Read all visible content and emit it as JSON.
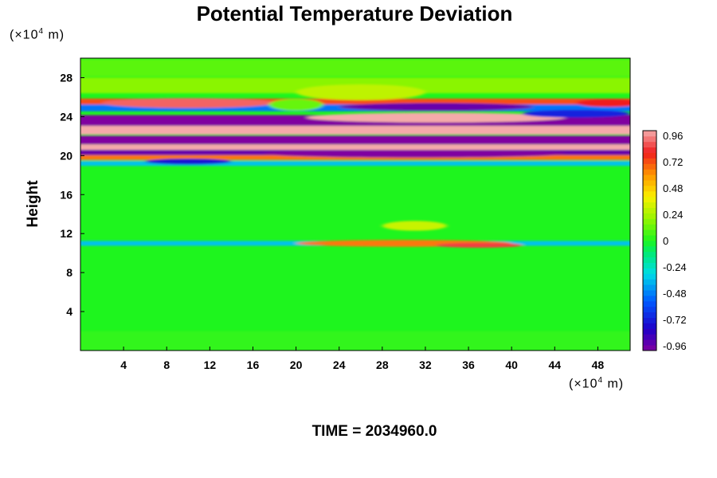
{
  "chart_data": {
    "type": "heatmap",
    "title": "Potential Temperature Deviation",
    "ylabel": "Height",
    "y_unit": {
      "prefix": "(×10",
      "exp": "4",
      "suffix": " m)"
    },
    "x_unit": {
      "prefix": "(×10",
      "exp": "4",
      "suffix": " m)"
    },
    "time_label": "TIME = 2034960.0",
    "xlim": [
      0,
      51
    ],
    "ylim": [
      0,
      30
    ],
    "x_ticks": [
      4,
      8,
      12,
      16,
      20,
      24,
      28,
      32,
      36,
      40,
      44,
      48
    ],
    "y_ticks": [
      4,
      8,
      12,
      16,
      20,
      24,
      28
    ],
    "colorbar": {
      "min": -1.0,
      "max": 1.0,
      "labels": [
        "0.96",
        "0.72",
        "0.48",
        "0.24",
        "0",
        "-0.24",
        "-0.48",
        "-0.72",
        "-0.96"
      ]
    },
    "bands": [
      {
        "y_center": 29.0,
        "half_width": 0.9,
        "value": 0.1
      },
      {
        "y_center": 27.2,
        "half_width": 0.8,
        "value": 0.18
      },
      {
        "y_center": 25.4,
        "half_width": 0.45,
        "value": 0.72
      },
      {
        "y_center": 24.9,
        "half_width": 0.35,
        "value": -0.5
      },
      {
        "y_center": 23.6,
        "half_width": 0.55,
        "value": -1.0
      },
      {
        "y_center": 22.6,
        "half_width": 0.45,
        "value": 1.0
      },
      {
        "y_center": 21.6,
        "half_width": 0.45,
        "value": -1.0
      },
      {
        "y_center": 20.8,
        "half_width": 0.35,
        "value": 1.0
      },
      {
        "y_center": 20.3,
        "half_width": 0.3,
        "value": -0.95
      },
      {
        "y_center": 19.8,
        "half_width": 0.25,
        "value": 0.65
      },
      {
        "y_center": 19.2,
        "half_width": 0.25,
        "value": -0.35
      },
      {
        "y_center": 11.0,
        "half_width": 0.25,
        "value": -0.35
      },
      {
        "y_center": 1.0,
        "half_width": 1.0,
        "value": 0.03
      }
    ],
    "features": [
      {
        "x": 30,
        "y": 11.0,
        "rx": 10,
        "ry": 0.35,
        "value": 0.65
      },
      {
        "x": 37,
        "y": 10.8,
        "rx": 4,
        "ry": 0.25,
        "value": 0.85
      },
      {
        "x": 31,
        "y": 12.8,
        "rx": 3,
        "ry": 0.5,
        "value": 0.3
      },
      {
        "x": 33,
        "y": 25.0,
        "rx": 9,
        "ry": 0.4,
        "value": -0.95
      },
      {
        "x": 26,
        "y": 26.5,
        "rx": 6,
        "ry": 0.8,
        "value": 0.28
      },
      {
        "x": 33,
        "y": 23.9,
        "rx": 12,
        "ry": 0.5,
        "value": 1.0
      },
      {
        "x": 10,
        "y": 25.4,
        "rx": 8,
        "ry": 0.5,
        "value": 0.9
      },
      {
        "x": 49,
        "y": 25.4,
        "rx": 3,
        "ry": 0.4,
        "value": 0.8
      },
      {
        "x": 46,
        "y": 24.3,
        "rx": 5,
        "ry": 0.4,
        "value": -0.7
      },
      {
        "x": 31,
        "y": 20.2,
        "rx": 14,
        "ry": 0.4,
        "value": -1.0
      },
      {
        "x": 10,
        "y": 19.4,
        "rx": 4,
        "ry": 0.3,
        "value": -0.75
      },
      {
        "x": 20,
        "y": 25.2,
        "rx": 2.5,
        "ry": 0.6,
        "value": 0.12
      }
    ]
  }
}
